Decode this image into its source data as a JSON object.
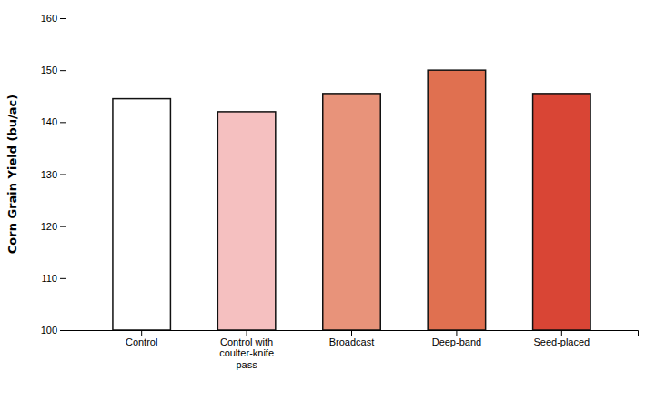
{
  "chart_data": {
    "type": "bar",
    "y_label": "Corn Grain Yield (bu/ac)",
    "categories": [
      "Control",
      "Control with\ncoulter-knife\npass",
      "Broadcast",
      "Deep-band",
      "Seed-placed"
    ],
    "values": [
      144.5,
      142.0,
      145.5,
      150.0,
      145.5
    ],
    "colors": [
      "#ffffff",
      "#f5c0c0",
      "#e8937a",
      "#e07050",
      "#d94535"
    ],
    "ylim": [
      100,
      160
    ],
    "yticks": [
      100,
      110,
      120,
      130,
      140,
      150,
      160
    ],
    "grid": false
  }
}
